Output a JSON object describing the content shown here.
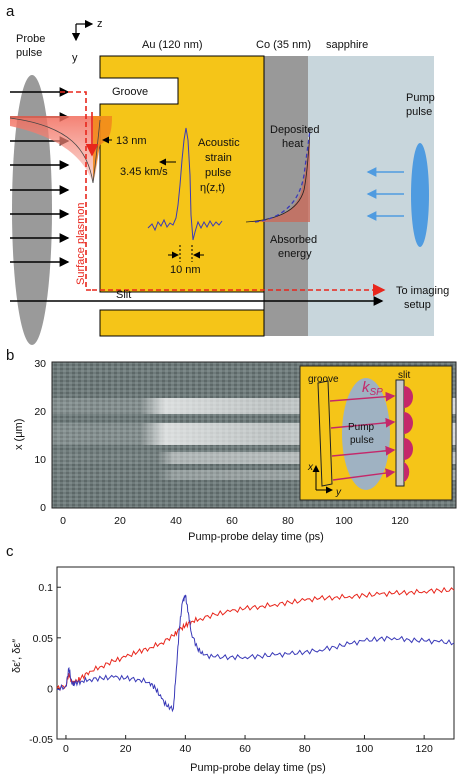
{
  "panel_a": {
    "panel_label": "a",
    "axis_z": "z",
    "axis_y": "y",
    "probe_label_1": "Probe",
    "probe_label_2": "pulse",
    "au_label": "Au (120 nm)",
    "co_label": "Co (35 nm)",
    "sapphire_label": "sapphire",
    "groove_label": "Groove",
    "pump_label_1": "Pump",
    "pump_label_2": "pulse",
    "thirteen_nm": "13 nm",
    "speed": "3.45 km/s",
    "acoustic_1": "Acoustic",
    "acoustic_2": "strain",
    "acoustic_3": "pulse",
    "acoustic_4": "η(z,t)",
    "deposited_1": "Deposited",
    "deposited_2": "heat",
    "absorbed_1": "Absorbed",
    "absorbed_2": "energy",
    "ten_nm": "10 nm",
    "surface_plasmon": "Surface plasmon",
    "slit_label": "Slit",
    "imaging_1": "To imaging",
    "imaging_2": "setup",
    "colors": {
      "gold": "#f5c518",
      "cobalt": "#999999",
      "sapphire": "#c8d6dc",
      "plasmon": "#e8261c",
      "probe": "#9a9a9a",
      "pump": "#4f9be0",
      "strain": "#3a3ab8"
    }
  },
  "panel_b": {
    "panel_label": "b",
    "ylabel": "x (μm)",
    "xlabel": "Pump-probe delay time (ps)",
    "yticks": [
      "0",
      "10",
      "20",
      "30"
    ],
    "xticks": [
      "0",
      "20",
      "40",
      "60",
      "80",
      "100",
      "120"
    ],
    "inset": {
      "groove": "groove",
      "slit": "slit",
      "ksp": "k",
      "ksp_sub": "SP",
      "pump_1": "Pump",
      "pump_2": "pulse",
      "axis_x": "x",
      "axis_y": "y"
    }
  },
  "panel_c": {
    "panel_label": "c",
    "xlabel": "Pump-probe delay time (ps)",
    "ylabel": "δε′, δε″"
  },
  "chart_data": {
    "type": "line",
    "title": "",
    "xlabel": "Pump-probe delay time (ps)",
    "ylabel": "δε′, δε″",
    "xlim": [
      -3,
      130
    ],
    "ylim": [
      -0.05,
      0.12
    ],
    "xticks": [
      0,
      20,
      40,
      60,
      80,
      100,
      120
    ],
    "yticks": [
      -0.05,
      0,
      0.05,
      0.1
    ],
    "ytick_labels": [
      "-0.05",
      "0",
      "0.05",
      "0.1"
    ],
    "series": [
      {
        "color": "#e8261c",
        "x": [
          -3,
          0,
          1,
          2,
          3,
          5,
          8,
          12,
          16,
          20,
          24,
          28,
          32,
          36,
          38,
          40,
          42,
          45,
          50,
          55,
          60,
          65,
          70,
          75,
          80,
          85,
          90,
          95,
          100,
          105,
          110,
          115,
          120,
          125,
          130
        ],
        "y": [
          0.0,
          0.003,
          0.015,
          0.005,
          0.006,
          0.01,
          0.017,
          0.022,
          0.027,
          0.031,
          0.036,
          0.04,
          0.045,
          0.052,
          0.058,
          0.062,
          0.066,
          0.069,
          0.073,
          0.076,
          0.079,
          0.081,
          0.083,
          0.085,
          0.087,
          0.089,
          0.09,
          0.091,
          0.092,
          0.093,
          0.094,
          0.095,
          0.096,
          0.097,
          0.097
        ]
      },
      {
        "color": "#3a3ab8",
        "x": [
          -3,
          0,
          1,
          2,
          3,
          5,
          8,
          12,
          16,
          20,
          24,
          28,
          30,
          32,
          34,
          36,
          37,
          38,
          39,
          40,
          41,
          42,
          44,
          46,
          50,
          55,
          60,
          65,
          70,
          75,
          80,
          85,
          90,
          95,
          100,
          105,
          110,
          115,
          120,
          125,
          130
        ],
        "y": [
          -0.001,
          0.002,
          0.02,
          0.004,
          0.005,
          0.007,
          0.009,
          0.01,
          0.011,
          0.01,
          0.009,
          0.006,
          0.0,
          -0.01,
          -0.018,
          -0.02,
          0.02,
          0.06,
          0.085,
          0.092,
          0.075,
          0.055,
          0.04,
          0.033,
          0.031,
          0.031,
          0.031,
          0.032,
          0.033,
          0.034,
          0.036,
          0.038,
          0.041,
          0.044,
          0.047,
          0.049,
          0.05,
          0.048,
          0.047,
          0.046,
          0.045
        ]
      }
    ]
  }
}
